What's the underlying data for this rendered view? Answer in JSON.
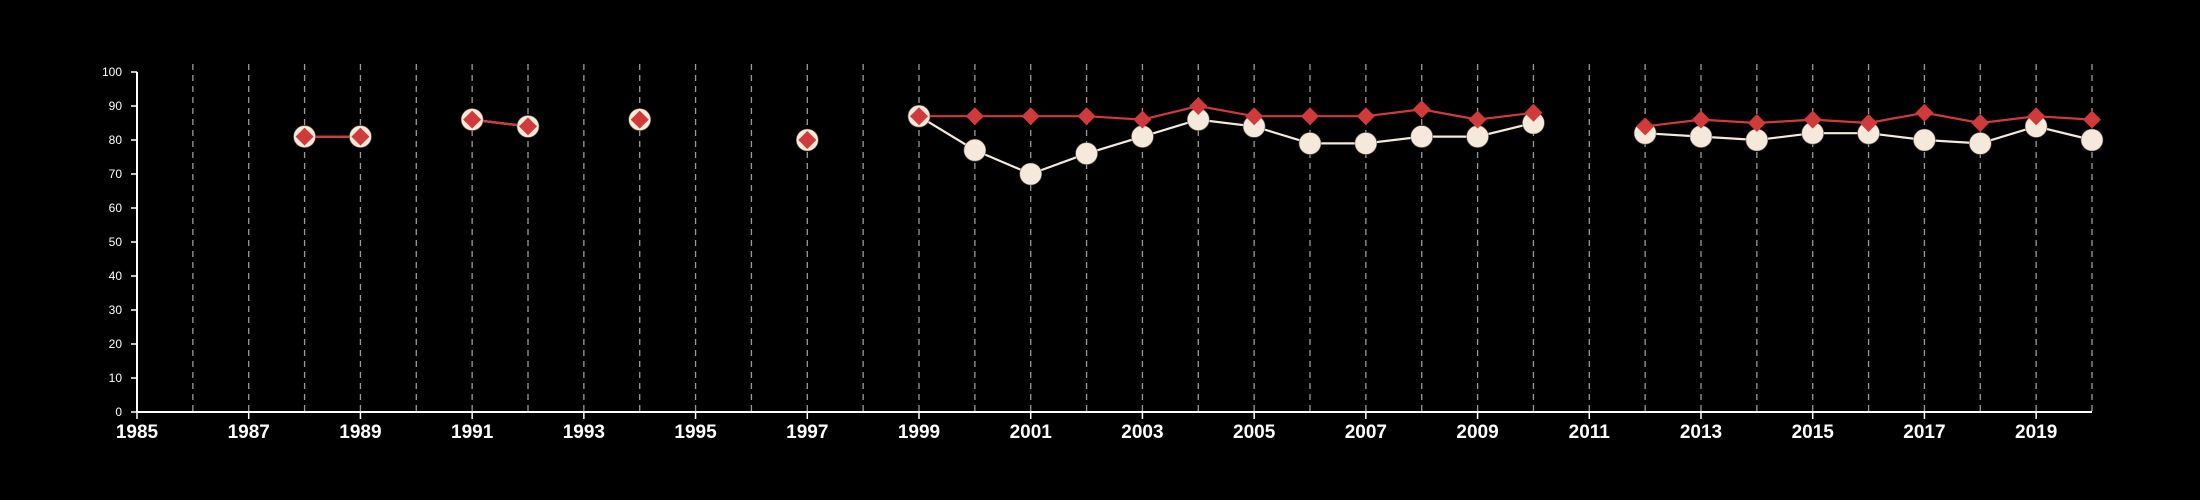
{
  "chart_data": {
    "type": "line",
    "title": "",
    "xlabel": "",
    "ylabel": "",
    "xlim": [
      1985,
      2020
    ],
    "ylim": [
      0,
      100
    ],
    "x_ticks": [
      1985,
      1987,
      1989,
      1991,
      1993,
      1995,
      1997,
      1999,
      2001,
      2003,
      2005,
      2007,
      2009,
      2011,
      2013,
      2015,
      2017,
      2019
    ],
    "y_ticks": [
      0,
      10,
      20,
      30,
      40,
      50,
      60,
      70,
      80,
      90,
      100
    ],
    "vertical_grid_years": [
      1986,
      1987,
      1988,
      1989,
      1990,
      1991,
      1992,
      1993,
      1994,
      1995,
      1996,
      1997,
      1998,
      1999,
      2000,
      2001,
      2002,
      2003,
      2004,
      2005,
      2006,
      2007,
      2008,
      2009,
      2010,
      2011,
      2012,
      2013,
      2014,
      2015,
      2016,
      2017,
      2018,
      2019,
      2020
    ],
    "grid": "vertical-dashed",
    "legend": "none",
    "series": [
      {
        "marker": "circle",
        "color": "#f5e9dc",
        "points": [
          [
            1988,
            81
          ],
          [
            1989,
            81
          ],
          [
            1991,
            86
          ],
          [
            1992,
            84
          ],
          [
            1994,
            86
          ],
          [
            1997,
            80
          ],
          [
            1999,
            87
          ],
          [
            2000,
            77
          ],
          [
            2001,
            70
          ],
          [
            2002,
            76
          ],
          [
            2003,
            81
          ],
          [
            2004,
            86
          ],
          [
            2005,
            84
          ],
          [
            2006,
            79
          ],
          [
            2007,
            79
          ],
          [
            2008,
            81
          ],
          [
            2009,
            81
          ],
          [
            2010,
            85
          ],
          [
            2012,
            82
          ],
          [
            2013,
            81
          ],
          [
            2014,
            80
          ],
          [
            2015,
            82
          ],
          [
            2016,
            82
          ],
          [
            2017,
            80
          ],
          [
            2018,
            79
          ],
          [
            2019,
            84
          ],
          [
            2020,
            80
          ]
        ]
      },
      {
        "marker": "diamond",
        "color": "#d03a3a",
        "points": [
          [
            1988,
            81
          ],
          [
            1989,
            81
          ],
          [
            1991,
            86
          ],
          [
            1992,
            84
          ],
          [
            1994,
            86
          ],
          [
            1997,
            80
          ],
          [
            1999,
            87
          ],
          [
            2000,
            87
          ],
          [
            2001,
            87
          ],
          [
            2002,
            87
          ],
          [
            2003,
            86
          ],
          [
            2004,
            90
          ],
          [
            2005,
            87
          ],
          [
            2006,
            87
          ],
          [
            2007,
            87
          ],
          [
            2008,
            89
          ],
          [
            2009,
            86
          ],
          [
            2010,
            88
          ],
          [
            2012,
            84
          ],
          [
            2013,
            86
          ],
          [
            2014,
            85
          ],
          [
            2015,
            86
          ],
          [
            2016,
            85
          ],
          [
            2017,
            88
          ],
          [
            2018,
            85
          ],
          [
            2019,
            87
          ],
          [
            2020,
            86
          ]
        ]
      }
    ]
  }
}
